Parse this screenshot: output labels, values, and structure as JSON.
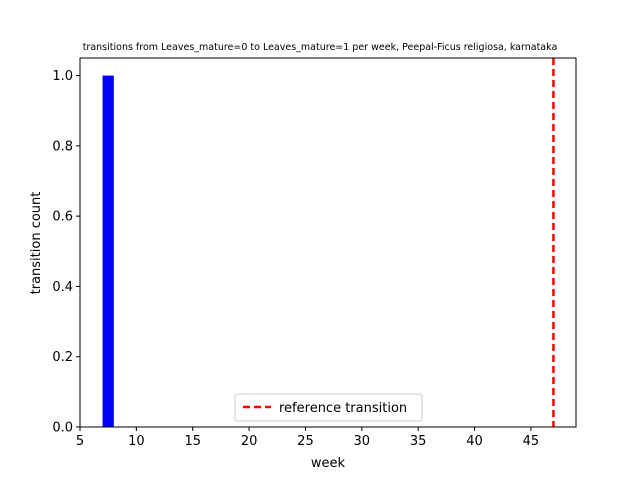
{
  "chart_data": {
    "type": "bar",
    "title": "transitions from Leaves_mature=0 to Leaves_mature=1 per week, Peepal-Ficus religiosa, karnataka",
    "xlabel": "week",
    "ylabel": "transition count",
    "xlim": [
      5,
      49
    ],
    "ylim": [
      0,
      1.05
    ],
    "xticks": [
      5,
      10,
      15,
      20,
      25,
      30,
      35,
      40,
      45
    ],
    "yticks": [
      0.0,
      0.2,
      0.4,
      0.6,
      0.8,
      1.0
    ],
    "ytick_labels": [
      "0.0",
      "0.2",
      "0.4",
      "0.6",
      "0.8",
      "1.0"
    ],
    "bars": [
      {
        "week": 7,
        "value": 1.0,
        "color": "#0000ff"
      }
    ],
    "reference_line": {
      "week": 47,
      "label": "reference transition",
      "color": "#ff0000",
      "style": "dashed"
    },
    "legend": {
      "placement": "lower-center"
    },
    "grid": false
  }
}
